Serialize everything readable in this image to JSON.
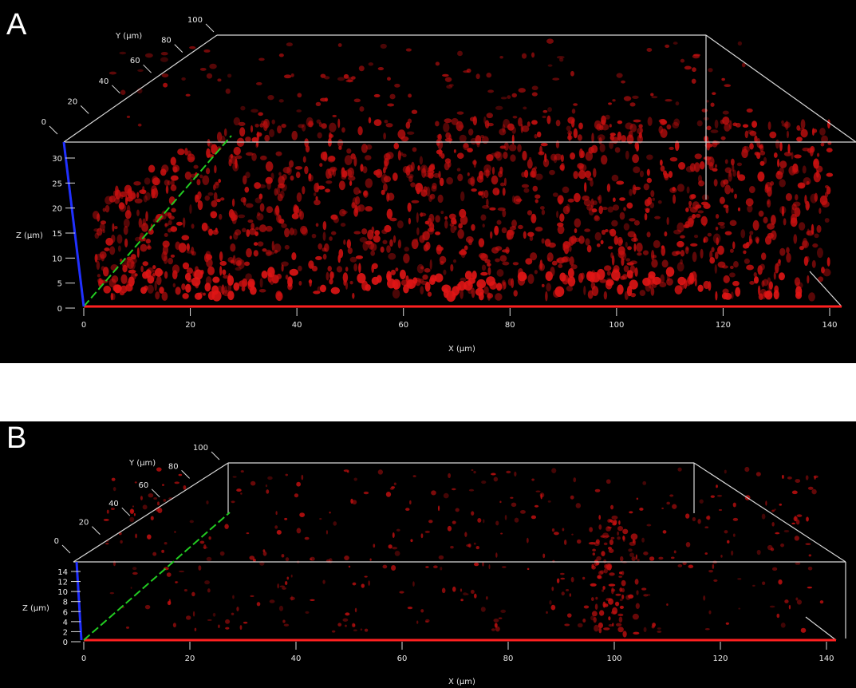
{
  "panels": [
    {
      "letter": "A",
      "y_axis": {
        "label": "Y (µm)",
        "ticks": [
          "0",
          "20",
          "40",
          "60",
          "80",
          "100"
        ]
      },
      "z_axis": {
        "label": "Z (µm)",
        "ticks": [
          "0",
          "5",
          "10",
          "15",
          "20",
          "25",
          "30"
        ]
      },
      "x_axis": {
        "label": "X (µm)",
        "ticks": [
          "0",
          "20",
          "40",
          "60",
          "80",
          "100",
          "120",
          "140"
        ]
      },
      "density": "dense"
    },
    {
      "letter": "B",
      "y_axis": {
        "label": "Y (µm)",
        "ticks": [
          "0",
          "20",
          "40",
          "60",
          "80",
          "100"
        ]
      },
      "z_axis": {
        "label": "Z (µm)",
        "ticks": [
          "0",
          "2",
          "4",
          "6",
          "8",
          "10",
          "12",
          "14"
        ]
      },
      "x_axis": {
        "label": "X (µm)",
        "ticks": [
          "0",
          "20",
          "40",
          "60",
          "80",
          "100",
          "120",
          "140"
        ]
      },
      "density": "sparse"
    }
  ],
  "colors": {
    "background": "#000000",
    "box_edges": "#d8d8d8",
    "x_axis": "#ff2020",
    "y_axis": "#22cc22",
    "z_axis": "#2030ff",
    "signal": "#c81010"
  }
}
